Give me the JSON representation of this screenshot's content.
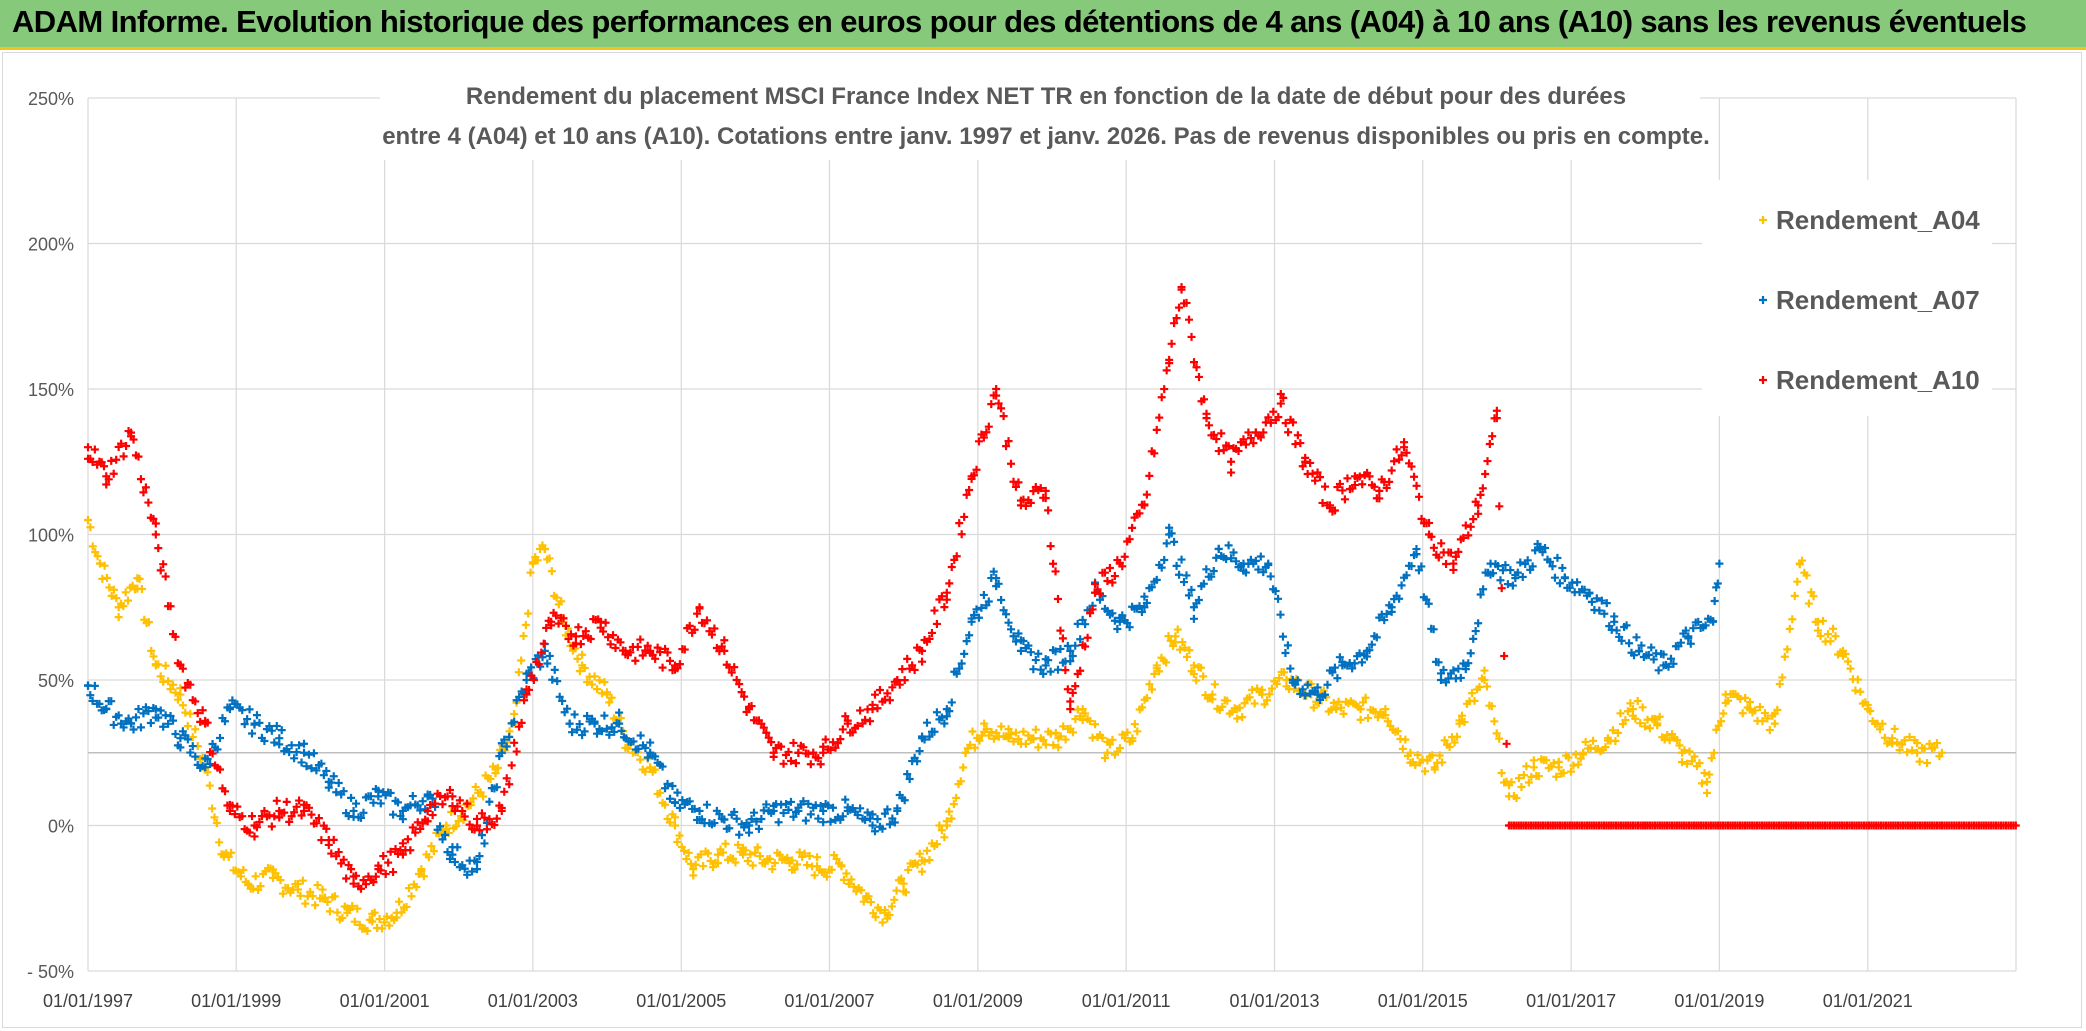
{
  "header": {
    "title": "ADAM Informe. Evolution historique des performances en euros pour des détentions de 4 ans (A04) à 10 ans (A10) sans les revenus éventuels"
  },
  "colors": {
    "header_bg": "#86c97a",
    "header_border": "#f2c318",
    "A04": "#ffc000",
    "A07": "#0070c0",
    "A10": "#ff0000"
  },
  "chart_data": {
    "type": "scatter",
    "title_lines": [
      "Rendement du placement MSCI France Index NET TR en fonction de la date de début pour des durées",
      "entre 4 (A04) et 10 ans (A10). Cotations entre janv. 1997 et janv. 2026. Pas de revenus disponibles ou pris en compte."
    ],
    "x_range": [
      "1997-01-01",
      "2023-01-01"
    ],
    "x_ticks": [
      "1997-01-01",
      "1999-01-01",
      "2001-01-01",
      "2003-01-01",
      "2005-01-01",
      "2007-01-01",
      "2009-01-01",
      "2011-01-01",
      "2013-01-01",
      "2015-01-01",
      "2017-01-01",
      "2019-01-01",
      "2021-01-01"
    ],
    "x_tick_labels": [
      "01/01/1997",
      "01/01/1999",
      "01/01/2001",
      "01/01/2003",
      "01/01/2005",
      "01/01/2007",
      "01/01/2009",
      "01/01/2011",
      "01/01/2013",
      "01/01/2015",
      "01/01/2017",
      "01/01/2019",
      "01/01/2021"
    ],
    "y_range": [
      -0.5,
      2.5
    ],
    "y_ticks": [
      -0.5,
      0,
      0.5,
      1.0,
      1.5,
      2.0,
      2.5
    ],
    "y_tick_labels": [
      "- 50%",
      "0%",
      "50%",
      "100%",
      "150%",
      "200%",
      "250%"
    ],
    "grid": true,
    "legend_position": "top-right",
    "series": [
      {
        "name": "Rendement_A04",
        "color": "#ffc000",
        "points": [
          [
            "1997-01-01",
            1.05
          ],
          [
            "1997-03-01",
            0.9
          ],
          [
            "1997-06-01",
            0.75
          ],
          [
            "1997-09-01",
            0.85
          ],
          [
            "1997-12-01",
            0.55
          ],
          [
            "1998-04-01",
            0.45
          ],
          [
            "1998-08-01",
            0.2
          ],
          [
            "1998-11-01",
            -0.1
          ],
          [
            "1999-03-01",
            -0.2
          ],
          [
            "1999-07-01",
            -0.18
          ],
          [
            "1999-11-01",
            -0.22
          ],
          [
            "2000-03-01",
            -0.25
          ],
          [
            "2000-07-01",
            -0.3
          ],
          [
            "2000-11-01",
            -0.33
          ],
          [
            "2001-03-01",
            -0.3
          ],
          [
            "2001-07-01",
            -0.15
          ],
          [
            "2001-11-01",
            0.0
          ],
          [
            "2002-03-01",
            0.08
          ],
          [
            "2002-07-01",
            0.18
          ],
          [
            "2002-10-01",
            0.35
          ],
          [
            "2003-01-01",
            0.9
          ],
          [
            "2003-03-01",
            0.95
          ],
          [
            "2003-06-01",
            0.7
          ],
          [
            "2003-09-01",
            0.55
          ],
          [
            "2004-01-01",
            0.45
          ],
          [
            "2004-04-01",
            0.3
          ],
          [
            "2004-08-01",
            0.2
          ],
          [
            "2004-12-01",
            0.0
          ],
          [
            "2005-03-01",
            -0.15
          ],
          [
            "2005-07-01",
            -0.1
          ],
          [
            "2005-11-01",
            -0.1
          ],
          [
            "2006-03-01",
            -0.12
          ],
          [
            "2006-07-01",
            -0.12
          ],
          [
            "2006-11-01",
            -0.14
          ],
          [
            "2007-03-01",
            -0.14
          ],
          [
            "2007-07-01",
            -0.25
          ],
          [
            "2007-10-01",
            -0.3
          ],
          [
            "2008-01-01",
            -0.2
          ],
          [
            "2008-04-01",
            -0.12
          ],
          [
            "2008-08-01",
            0.0
          ],
          [
            "2008-11-01",
            0.25
          ],
          [
            "2009-02-01",
            0.35
          ],
          [
            "2009-06-01",
            0.3
          ],
          [
            "2009-10-01",
            0.3
          ],
          [
            "2010-02-01",
            0.3
          ],
          [
            "2010-06-01",
            0.4
          ],
          [
            "2010-10-01",
            0.25
          ],
          [
            "2011-02-01",
            0.3
          ],
          [
            "2011-06-01",
            0.55
          ],
          [
            "2011-09-01",
            0.65
          ],
          [
            "2011-12-01",
            0.55
          ],
          [
            "2012-03-01",
            0.45
          ],
          [
            "2012-07-01",
            0.4
          ],
          [
            "2012-11-01",
            0.45
          ],
          [
            "2013-03-01",
            0.5
          ],
          [
            "2013-07-01",
            0.45
          ],
          [
            "2013-11-01",
            0.4
          ],
          [
            "2014-03-01",
            0.4
          ],
          [
            "2014-07-01",
            0.4
          ],
          [
            "2014-11-01",
            0.25
          ],
          [
            "2015-03-01",
            0.2
          ],
          [
            "2015-07-01",
            0.35
          ],
          [
            "2015-11-01",
            0.5
          ],
          [
            "2016-03-01",
            0.1
          ],
          [
            "2016-07-01",
            0.2
          ],
          [
            "2016-11-01",
            0.2
          ],
          [
            "2017-03-01",
            0.25
          ],
          [
            "2017-07-01",
            0.3
          ],
          [
            "2017-11-01",
            0.4
          ],
          [
            "2018-03-01",
            0.35
          ],
          [
            "2018-07-01",
            0.25
          ],
          [
            "2018-11-01",
            0.15
          ],
          [
            "2019-02-01",
            0.45
          ],
          [
            "2019-06-01",
            0.4
          ],
          [
            "2019-10-01",
            0.35
          ],
          [
            "2020-02-01",
            0.9
          ],
          [
            "2020-05-01",
            0.7
          ],
          [
            "2020-09-01",
            0.6
          ],
          [
            "2021-01-01",
            0.4
          ],
          [
            "2021-05-01",
            0.3
          ],
          [
            "2021-09-01",
            0.25
          ],
          [
            "2022-01-01",
            0.25
          ]
        ]
      },
      {
        "name": "Rendement_A07",
        "color": "#0070c0",
        "points": [
          [
            "1997-01-01",
            0.48
          ],
          [
            "1997-04-01",
            0.4
          ],
          [
            "1997-08-01",
            0.35
          ],
          [
            "1997-12-01",
            0.4
          ],
          [
            "1998-04-01",
            0.3
          ],
          [
            "1998-08-01",
            0.2
          ],
          [
            "1998-12-01",
            0.4
          ],
          [
            "1999-04-01",
            0.35
          ],
          [
            "1999-08-01",
            0.3
          ],
          [
            "1999-12-01",
            0.25
          ],
          [
            "2000-04-01",
            0.15
          ],
          [
            "2000-08-01",
            0.05
          ],
          [
            "2000-12-01",
            0.1
          ],
          [
            "2001-04-01",
            0.05
          ],
          [
            "2001-08-01",
            0.1
          ],
          [
            "2001-12-01",
            -0.1
          ],
          [
            "2002-04-01",
            -0.15
          ],
          [
            "2002-08-01",
            0.25
          ],
          [
            "2002-12-01",
            0.5
          ],
          [
            "2003-03-01",
            0.6
          ],
          [
            "2003-07-01",
            0.35
          ],
          [
            "2003-11-01",
            0.35
          ],
          [
            "2004-03-01",
            0.35
          ],
          [
            "2004-08-01",
            0.25
          ],
          [
            "2004-12-01",
            0.08
          ],
          [
            "2005-04-01",
            0.05
          ],
          [
            "2005-08-01",
            0.02
          ],
          [
            "2005-12-01",
            0.0
          ],
          [
            "2006-04-01",
            0.05
          ],
          [
            "2006-08-01",
            0.05
          ],
          [
            "2006-12-01",
            0.05
          ],
          [
            "2007-04-01",
            0.05
          ],
          [
            "2007-08-01",
            0.0
          ],
          [
            "2007-12-01",
            0.05
          ],
          [
            "2008-04-01",
            0.3
          ],
          [
            "2008-08-01",
            0.4
          ],
          [
            "2008-12-01",
            0.7
          ],
          [
            "2009-04-01",
            0.85
          ],
          [
            "2009-08-01",
            0.6
          ],
          [
            "2009-12-01",
            0.55
          ],
          [
            "2010-04-01",
            0.6
          ],
          [
            "2010-08-01",
            0.8
          ],
          [
            "2010-12-01",
            0.7
          ],
          [
            "2011-04-01",
            0.75
          ],
          [
            "2011-08-01",
            1.0
          ],
          [
            "2011-12-01",
            0.75
          ],
          [
            "2012-04-01",
            0.95
          ],
          [
            "2012-08-01",
            0.9
          ],
          [
            "2012-12-01",
            0.9
          ],
          [
            "2013-04-01",
            0.5
          ],
          [
            "2013-08-01",
            0.45
          ],
          [
            "2013-12-01",
            0.55
          ],
          [
            "2014-04-01",
            0.6
          ],
          [
            "2014-08-01",
            0.75
          ],
          [
            "2014-12-01",
            0.95
          ],
          [
            "2015-04-01",
            0.5
          ],
          [
            "2015-08-01",
            0.55
          ],
          [
            "2015-12-01",
            0.9
          ],
          [
            "2016-04-01",
            0.85
          ],
          [
            "2016-08-01",
            0.95
          ],
          [
            "2016-12-01",
            0.85
          ],
          [
            "2017-04-01",
            0.8
          ],
          [
            "2017-08-01",
            0.7
          ],
          [
            "2017-12-01",
            0.6
          ],
          [
            "2018-04-01",
            0.55
          ],
          [
            "2018-08-01",
            0.65
          ],
          [
            "2018-12-01",
            0.7
          ],
          [
            "2019-01-01",
            0.9
          ]
        ]
      },
      {
        "name": "Rendement_A10",
        "color": "#ff0000",
        "points": [
          [
            "1997-01-01",
            1.3
          ],
          [
            "1997-04-01",
            1.2
          ],
          [
            "1997-08-01",
            1.35
          ],
          [
            "1997-12-01",
            1.0
          ],
          [
            "1998-04-01",
            0.55
          ],
          [
            "1998-08-01",
            0.35
          ],
          [
            "1998-12-01",
            0.05
          ],
          [
            "1999-04-01",
            0.0
          ],
          [
            "1999-08-01",
            0.05
          ],
          [
            "1999-12-01",
            0.05
          ],
          [
            "2000-04-01",
            -0.05
          ],
          [
            "2000-08-01",
            -0.2
          ],
          [
            "2000-12-01",
            -0.15
          ],
          [
            "2001-04-01",
            -0.1
          ],
          [
            "2001-08-01",
            0.05
          ],
          [
            "2001-12-01",
            0.1
          ],
          [
            "2002-04-01",
            0.0
          ],
          [
            "2002-08-01",
            0.05
          ],
          [
            "2002-12-01",
            0.45
          ],
          [
            "2003-04-01",
            0.7
          ],
          [
            "2003-08-01",
            0.65
          ],
          [
            "2003-12-01",
            0.7
          ],
          [
            "2004-04-01",
            0.6
          ],
          [
            "2004-08-01",
            0.6
          ],
          [
            "2004-12-01",
            0.55
          ],
          [
            "2005-04-01",
            0.75
          ],
          [
            "2005-08-01",
            0.6
          ],
          [
            "2005-12-01",
            0.4
          ],
          [
            "2006-04-01",
            0.25
          ],
          [
            "2006-08-01",
            0.25
          ],
          [
            "2006-12-01",
            0.25
          ],
          [
            "2007-04-01",
            0.35
          ],
          [
            "2007-08-01",
            0.4
          ],
          [
            "2007-12-01",
            0.5
          ],
          [
            "2008-04-01",
            0.6
          ],
          [
            "2008-08-01",
            0.8
          ],
          [
            "2008-12-01",
            1.2
          ],
          [
            "2009-04-01",
            1.5
          ],
          [
            "2009-08-01",
            1.1
          ],
          [
            "2009-12-01",
            1.15
          ],
          [
            "2010-04-01",
            0.4
          ],
          [
            "2010-08-01",
            0.8
          ],
          [
            "2010-12-01",
            0.9
          ],
          [
            "2011-04-01",
            1.1
          ],
          [
            "2011-08-01",
            1.6
          ],
          [
            "2011-10-01",
            1.85
          ],
          [
            "2012-02-01",
            1.4
          ],
          [
            "2012-06-01",
            1.25
          ],
          [
            "2012-10-01",
            1.35
          ],
          [
            "2013-02-01",
            1.45
          ],
          [
            "2013-06-01",
            1.25
          ],
          [
            "2013-10-01",
            1.1
          ],
          [
            "2014-02-01",
            1.2
          ],
          [
            "2014-06-01",
            1.15
          ],
          [
            "2014-10-01",
            1.3
          ],
          [
            "2015-02-01",
            1.0
          ],
          [
            "2015-06-01",
            0.9
          ],
          [
            "2015-10-01",
            1.1
          ],
          [
            "2016-01-01",
            1.4
          ],
          [
            "2016-03-01",
            0.0
          ],
          [
            "2018-01-01",
            0.0
          ],
          [
            "2020-01-01",
            0.0
          ],
          [
            "2022-01-01",
            0.0
          ],
          [
            "2022-12-31",
            0.0
          ]
        ]
      }
    ]
  }
}
